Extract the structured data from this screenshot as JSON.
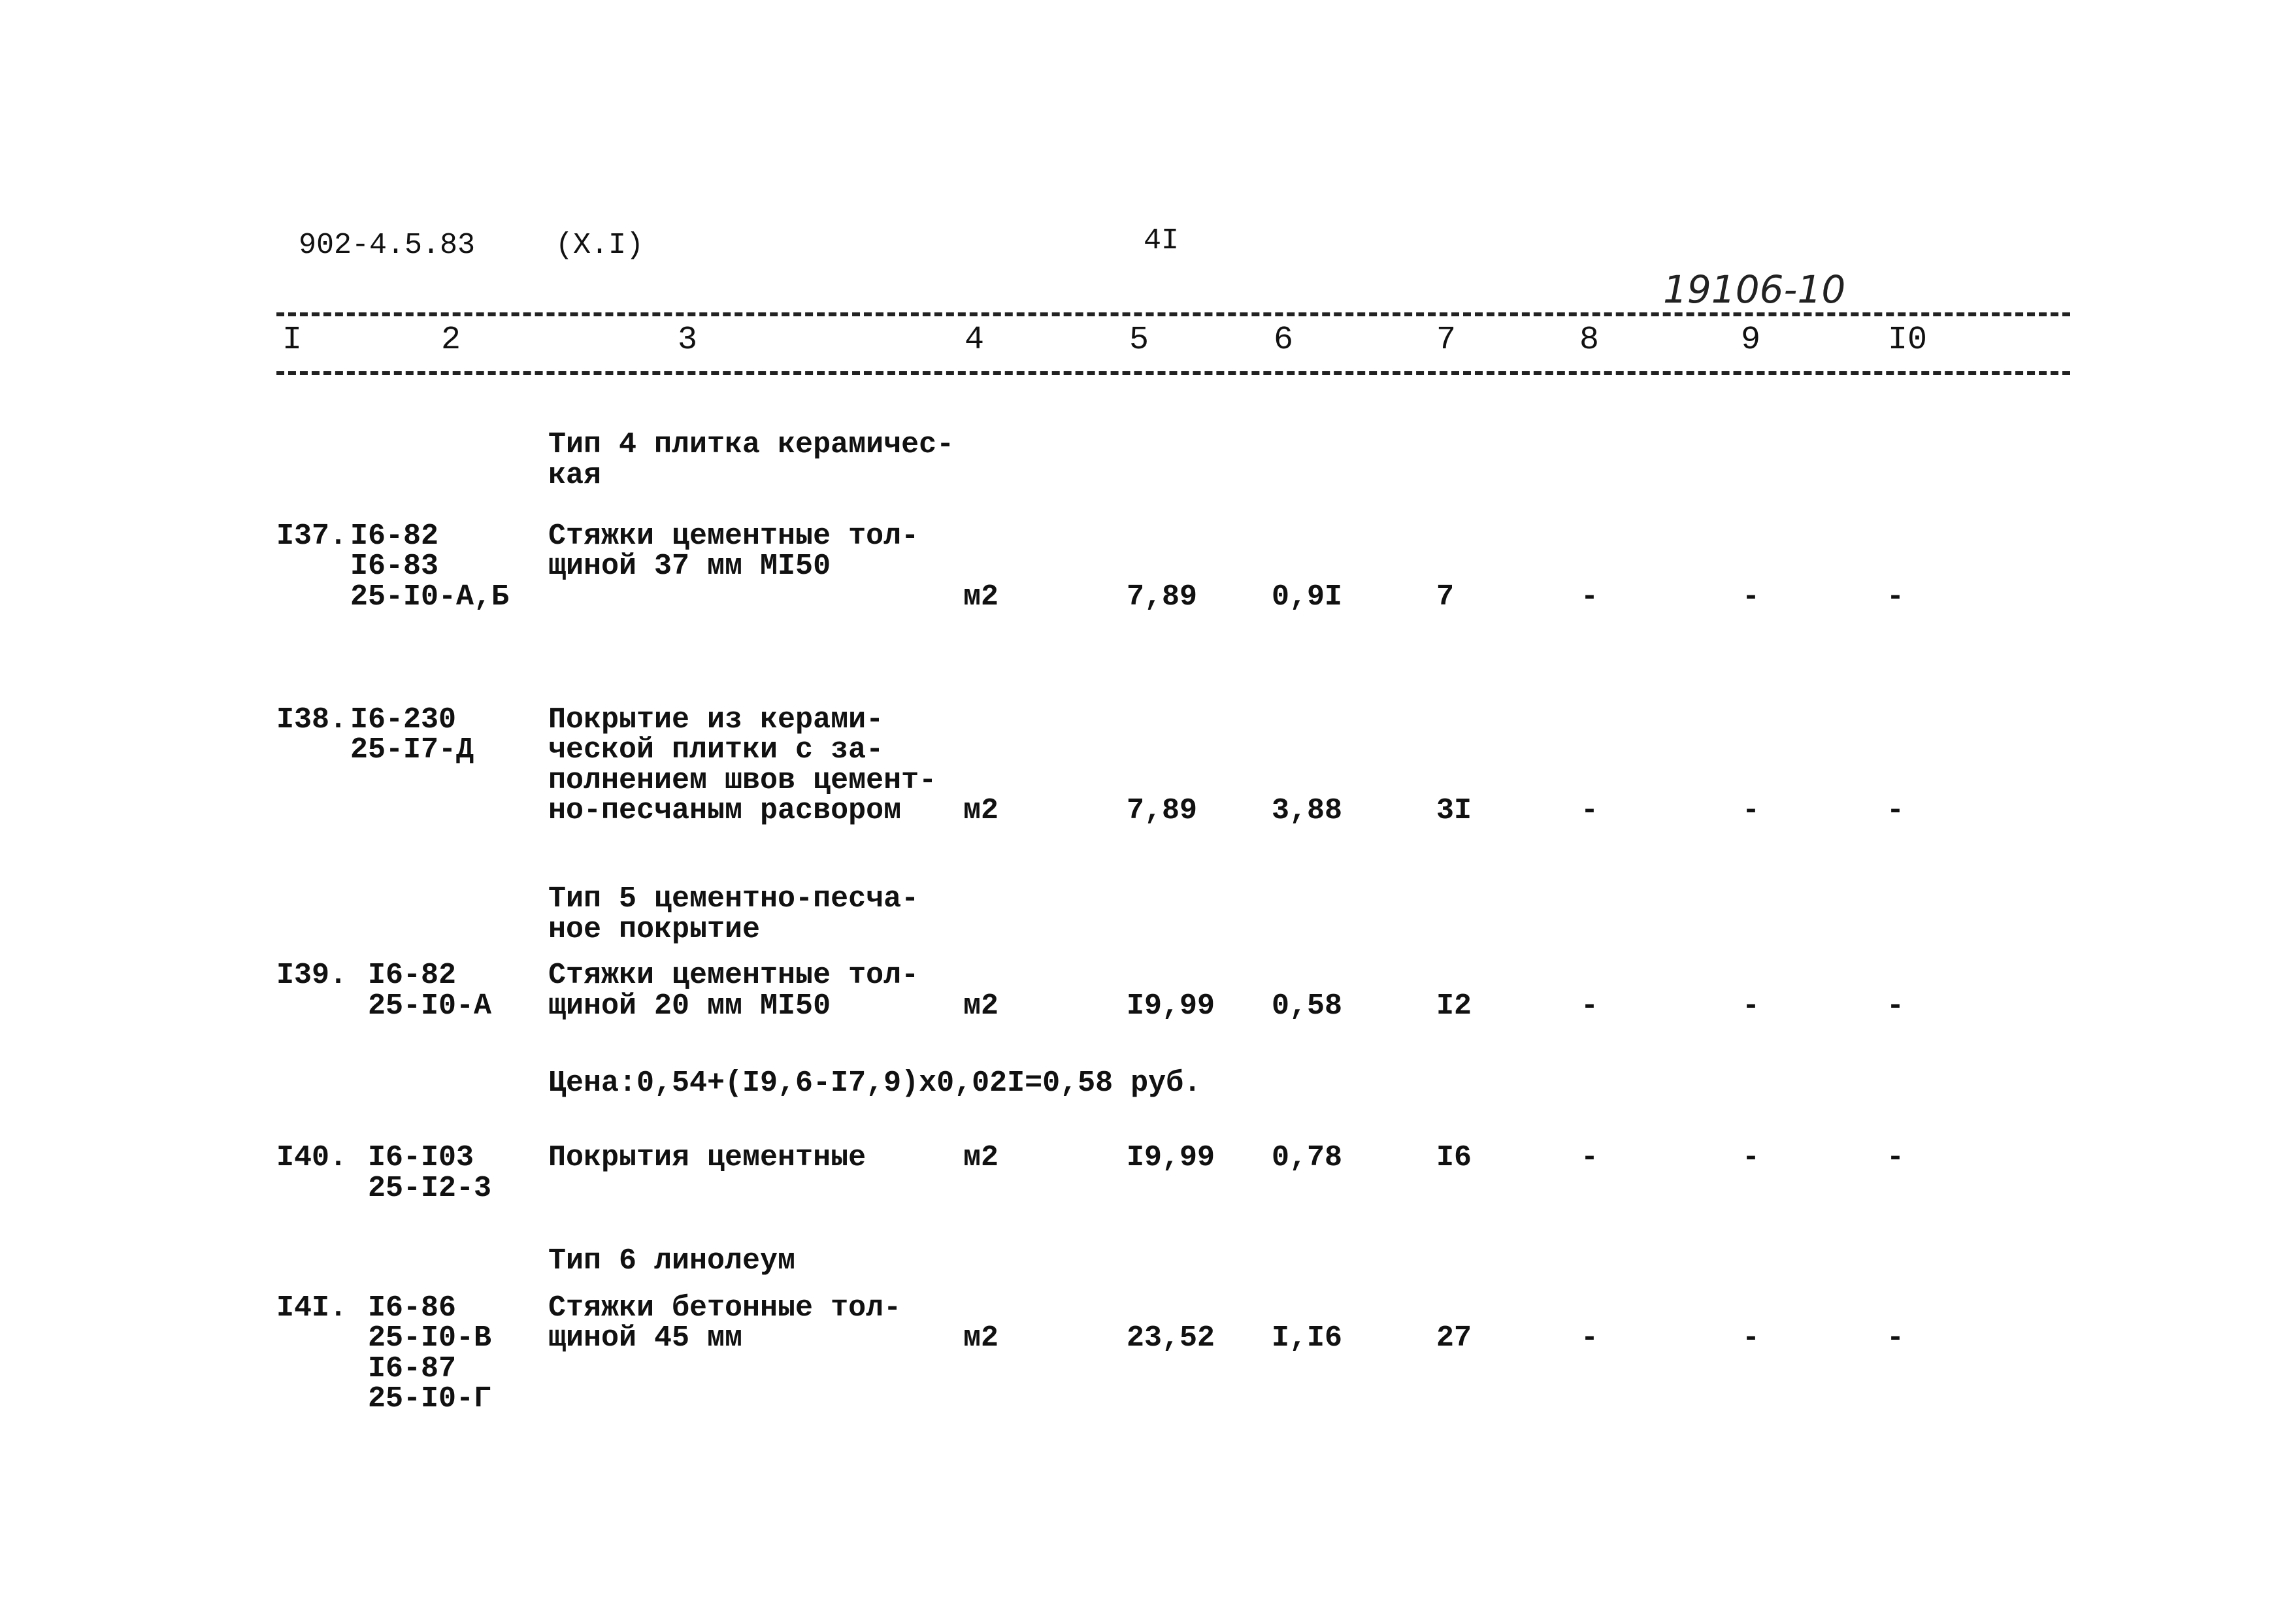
{
  "header": {
    "doc_code": "902-4.5.83",
    "section": "(X.I)",
    "page_number": "4I",
    "handwritten_number": "19106-10"
  },
  "column_numbers": [
    "I",
    "2",
    "3",
    "4",
    "5",
    "6",
    "7",
    "8",
    "9",
    "I0"
  ],
  "rows": [
    {
      "kind": "section",
      "desc": [
        "Тип 4 плитка керамичес-",
        "кая"
      ]
    },
    {
      "kind": "item",
      "num": "I37.",
      "codes": [
        "I6-82",
        "I6-83",
        "25-I0-А,Б"
      ],
      "desc": [
        "Стяжки цементные тол-",
        "щиной 37 мм МI50"
      ],
      "unit": "м2",
      "values": [
        "7,89",
        "0,9I",
        "7",
        "-",
        "-",
        "-"
      ]
    },
    {
      "kind": "item",
      "num": "I38.",
      "codes": [
        "I6-230",
        "25-I7-Д"
      ],
      "desc": [
        "Покрытие из керами-",
        "ческой плитки с за-",
        "полнением швов цемент-",
        "но-песчаным расвором"
      ],
      "unit": "м2",
      "values": [
        "7,89",
        "3,88",
        "3I",
        "-",
        "-",
        "-"
      ]
    },
    {
      "kind": "section",
      "desc": [
        "Тип 5 цементно-песча-",
        "ное покрытие"
      ]
    },
    {
      "kind": "item",
      "num": "I39.",
      "codes": [
        "I6-82",
        "25-I0-А"
      ],
      "desc": [
        "Стяжки цементные тол-",
        "щиной 20 мм МI50"
      ],
      "unit": "м2",
      "values": [
        "I9,99",
        "0,58",
        "I2",
        "-",
        "-",
        "-"
      ]
    },
    {
      "kind": "note",
      "desc": [
        "Цена:0,54+(I9,6-I7,9)х0,02I=0,58 руб."
      ]
    },
    {
      "kind": "item",
      "num": "I40.",
      "codes": [
        "I6-I03",
        "25-I2-3"
      ],
      "desc": [
        "Покрытия цементные"
      ],
      "unit": "м2",
      "values": [
        "I9,99",
        "0,78",
        "I6",
        "-",
        "-",
        "-"
      ]
    },
    {
      "kind": "section",
      "desc": [
        "Тип 6 линолеум"
      ]
    },
    {
      "kind": "item",
      "num": "I4I.",
      "codes": [
        "I6-86",
        "25-I0-В",
        "I6-87",
        "25-I0-Г"
      ],
      "desc": [
        "Стяжки бетонные тол-",
        "щиной 45 мм"
      ],
      "unit": "м2",
      "values": [
        "23,52",
        "I,I6",
        "27",
        "-",
        "-",
        "-"
      ]
    }
  ]
}
